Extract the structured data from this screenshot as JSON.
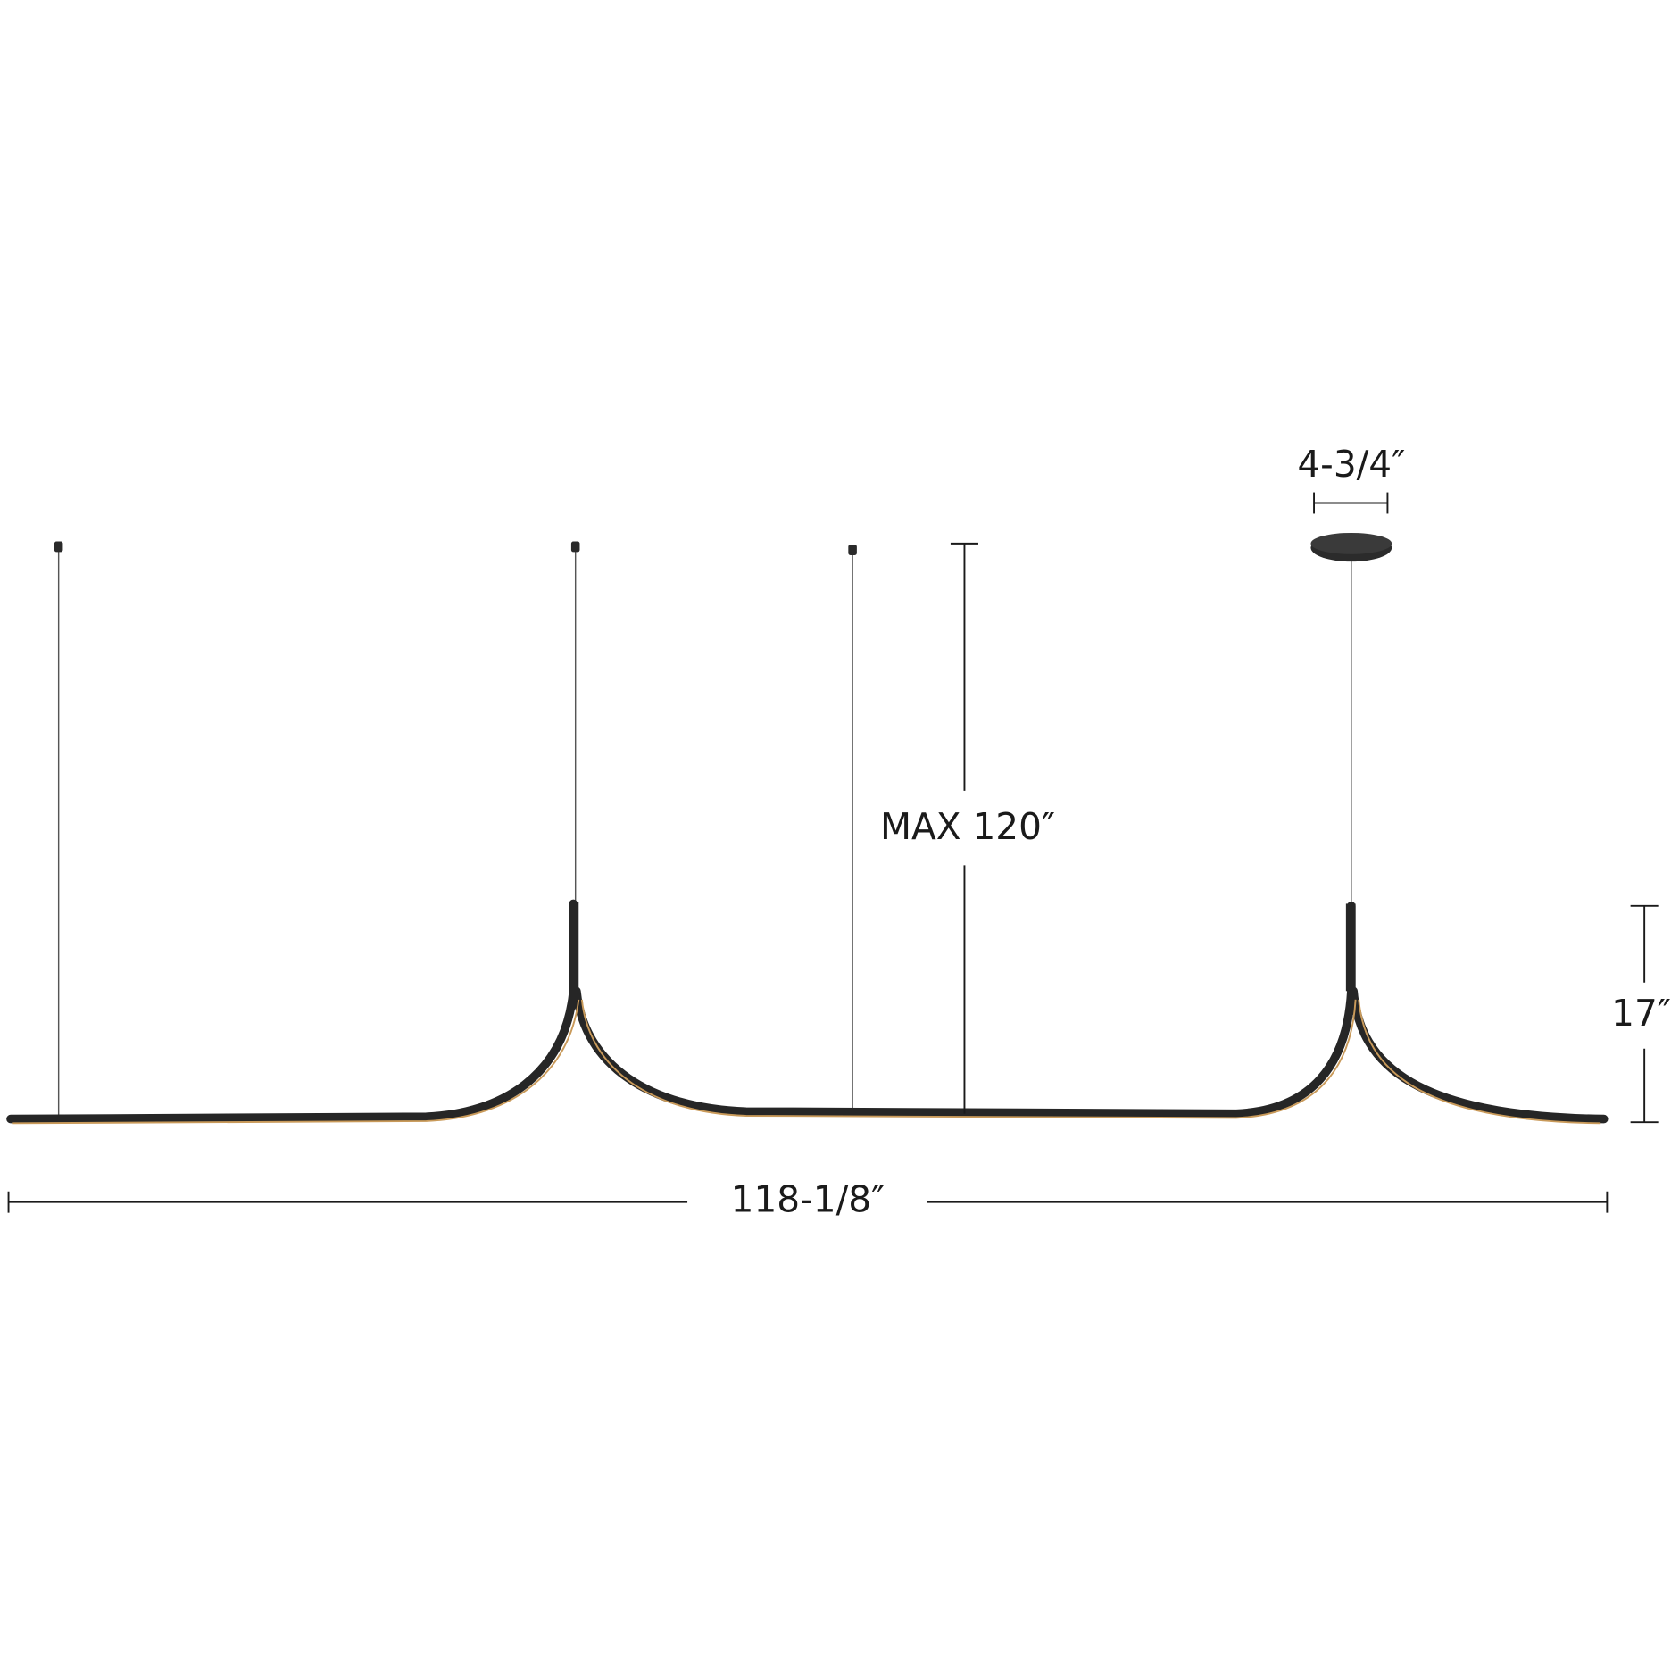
{
  "dimensions": {
    "canopy_width": "4-3/4″",
    "max_height": "MAX 120″",
    "fixture_height": "17″",
    "overall_length": "118-1/8″"
  }
}
